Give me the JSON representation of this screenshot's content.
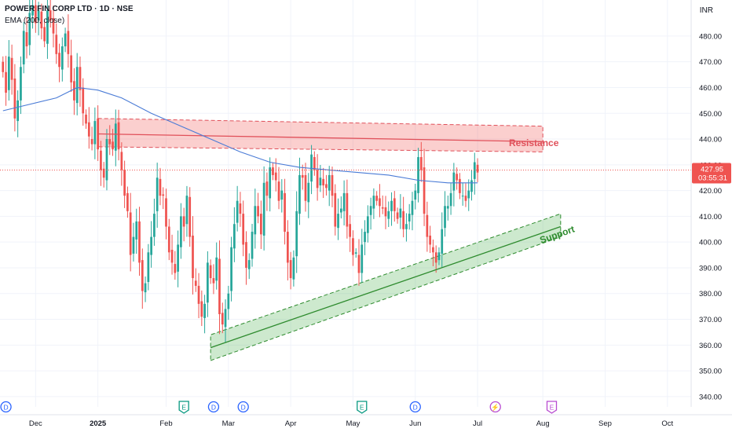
{
  "header": {
    "title": "POWER FIN CORP LTD · 1D · NSE",
    "indicator": "EMA (200, close)",
    "currency": "INR"
  },
  "price_tag": {
    "price": "427.95",
    "countdown": "03:55:31",
    "color": "#ef5350"
  },
  "colors": {
    "up": "#26a69a",
    "down": "#ef5350",
    "ema": "#4a7bd6",
    "resistance": "#e0505a",
    "support": "#2e8b2e"
  },
  "annotations": {
    "resistance_label": "Resistance",
    "support_label": "Support"
  },
  "event_markers": [
    {
      "letter": "D",
      "type": "dividend",
      "index": 1
    },
    {
      "letter": "E",
      "type": "earnings",
      "index": 61
    },
    {
      "letter": "D",
      "type": "dividend",
      "index": 71
    },
    {
      "letter": "D",
      "type": "dividend",
      "index": 81
    },
    {
      "letter": "E",
      "type": "earnings",
      "index": 121
    },
    {
      "letter": "D",
      "type": "dividend",
      "index": 139
    },
    {
      "letter": "⚡",
      "type": "upcoming",
      "index": 166
    },
    {
      "letter": "E",
      "type": "upcoming-earnings",
      "index": 185
    }
  ],
  "chart_data": {
    "type": "candlestick",
    "y_axis": {
      "ticks": [
        "340.00",
        "350.00",
        "360.00",
        "370.00",
        "380.00",
        "390.00",
        "400.00",
        "410.00",
        "420.00",
        "430.00",
        "440.00",
        "450.00",
        "460.00",
        "470.00",
        "480.00"
      ],
      "range": [
        336,
        494
      ]
    },
    "x_axis": {
      "labels": [
        {
          "text": "Dec",
          "index": 11,
          "bold": false
        },
        {
          "text": "2025",
          "index": 32,
          "bold": true
        },
        {
          "text": "Feb",
          "index": 55,
          "bold": false
        },
        {
          "text": "Mar",
          "index": 76,
          "bold": false
        },
        {
          "text": "Apr",
          "index": 97,
          "bold": false
        },
        {
          "text": "May",
          "index": 118,
          "bold": false
        },
        {
          "text": "Jun",
          "index": 139,
          "bold": false
        },
        {
          "text": "Jul",
          "index": 160,
          "bold": false
        },
        {
          "text": "Aug",
          "index": 182,
          "bold": false
        },
        {
          "text": "Sep",
          "index": 203,
          "bold": false
        },
        {
          "text": "Oct",
          "index": 224,
          "bold": false
        }
      ],
      "range": [
        -1,
        232
      ]
    },
    "closes": [
      466,
      458,
      472,
      463,
      448,
      455,
      468,
      482,
      476,
      489,
      492,
      485,
      490,
      483,
      478,
      490,
      486,
      481,
      473,
      468,
      476,
      481,
      473,
      462,
      455,
      468,
      459,
      450,
      446,
      441,
      438,
      447,
      436,
      428,
      425,
      440,
      438,
      436,
      446,
      436,
      428,
      418,
      412,
      395,
      402,
      408,
      392,
      381,
      384,
      396,
      402,
      411,
      425,
      418,
      418,
      406,
      396,
      392,
      388,
      399,
      410,
      406,
      418,
      402,
      386,
      383,
      376,
      371,
      376,
      392,
      386,
      384,
      394,
      372,
      368,
      374,
      380,
      398,
      407,
      416,
      411,
      399,
      390,
      393,
      404,
      414,
      410,
      403,
      423,
      418,
      429,
      426,
      424,
      416,
      420,
      404,
      392,
      386,
      394,
      412,
      426,
      425,
      416,
      423,
      434,
      428,
      421,
      425,
      422,
      421,
      426,
      418,
      406,
      411,
      413,
      419,
      406,
      402,
      395,
      396,
      388,
      399,
      404,
      410,
      414,
      418,
      416,
      414,
      413,
      410,
      412,
      416,
      412,
      409,
      413,
      405,
      407,
      411,
      416,
      420,
      433,
      428,
      411,
      402,
      399,
      396,
      392,
      396,
      405,
      414,
      414,
      419,
      427,
      424,
      419,
      418,
      416,
      420,
      424,
      431,
      427
    ],
    "ema": {
      "points": [
        [
          0,
          451
        ],
        [
          18,
          456
        ],
        [
          25,
          460
        ],
        [
          32,
          459
        ],
        [
          40,
          456
        ],
        [
          50,
          450
        ],
        [
          60,
          445
        ],
        [
          70,
          440
        ],
        [
          80,
          435
        ],
        [
          90,
          431
        ],
        [
          100,
          429
        ],
        [
          110,
          428
        ],
        [
          120,
          427
        ],
        [
          130,
          426
        ],
        [
          140,
          424
        ],
        [
          150,
          423
        ],
        [
          160,
          423
        ]
      ],
      "label": "EMA (200, close)"
    },
    "resistance": {
      "center": [
        [
          32,
          442
        ],
        [
          182,
          439
        ]
      ],
      "zone": [
        [
          32,
          448
        ],
        [
          182,
          445
        ],
        [
          182,
          435
        ],
        [
          32,
          437
        ]
      ],
      "label": "Resistance"
    },
    "support": {
      "center": [
        [
          70,
          359
        ],
        [
          188,
          406
        ]
      ],
      "zone": [
        [
          70,
          354
        ],
        [
          188,
          402
        ],
        [
          188,
          411
        ],
        [
          70,
          364
        ]
      ],
      "label": "Support"
    },
    "last_price": 427.95
  }
}
